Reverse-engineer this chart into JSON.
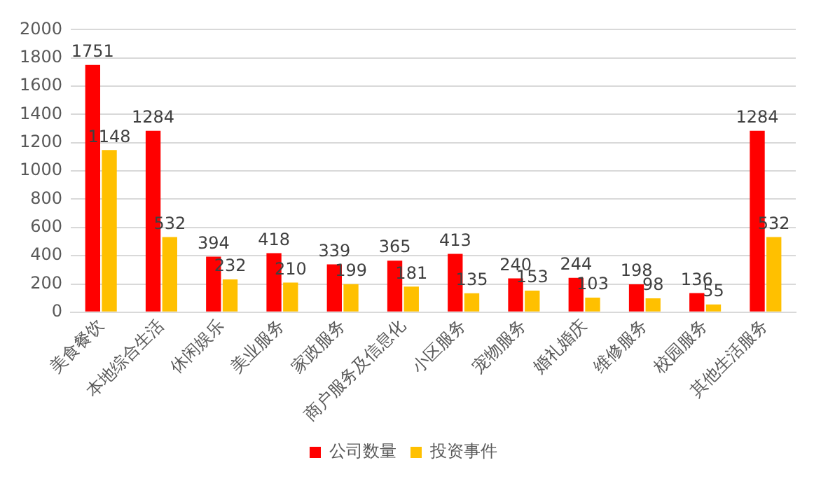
{
  "chart_data": {
    "type": "bar",
    "categories": [
      "美食餐饮",
      "本地综合生活",
      "休闲娱乐",
      "美业服务",
      "家政服务",
      "商户服务及信息化",
      "小区服务",
      "宠物服务",
      "婚礼婚庆",
      "维修服务",
      "校园服务",
      "其他生活服务"
    ],
    "series": [
      {
        "name": "公司数量",
        "color": "#ff0000",
        "values": [
          1751,
          1284,
          394,
          418,
          339,
          365,
          413,
          240,
          244,
          198,
          136,
          1284
        ]
      },
      {
        "name": "投资事件",
        "color": "#ffc000",
        "values": [
          1148,
          532,
          232,
          210,
          199,
          181,
          135,
          153,
          103,
          98,
          55,
          532
        ]
      }
    ],
    "ylim": [
      0,
      2000
    ],
    "yticks": [
      0,
      200,
      400,
      600,
      800,
      1000,
      1200,
      1400,
      1600,
      1800,
      2000
    ],
    "grid": "y",
    "legend": "bottom",
    "data_labels": true
  }
}
